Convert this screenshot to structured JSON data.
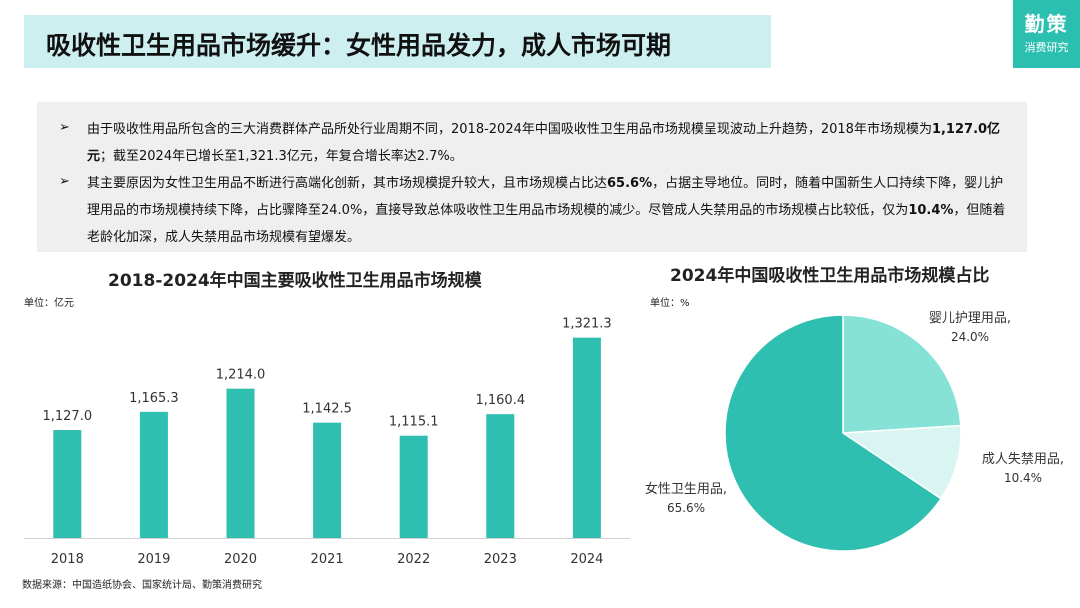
{
  "header": {
    "title": "吸收性卫生用品市场缓升：女性用品发力，成人市场可期",
    "brand_main": "勤策",
    "brand_sub": "消费研究"
  },
  "summary": {
    "bullet_icon": "arrow-bullet-icon",
    "b1": {
      "part1": "由于吸收性用品所包含的三大消费群体产品所处行业周期不同，2018-2024年中国吸收性卫生用品市场规模呈现波动上升趋势，2018年市场规模为",
      "bold": "1,127.0亿元",
      "part2": "；截至2024年已增长至1,321.3亿元，年复合增长率达2.7%。"
    },
    "b2": {
      "part1": "其主要原因为女性卫生用品不断进行高端化创新，其市场规模提升较大，且市场规模占比达",
      "bold1": "65.6%",
      "part2": "，占据主导地位。同时，随着中国新生人口持续下降，婴儿护理用品的市场规模持续下降，占比骤降至24.0%，直接导致总体吸收性卫生用品市场规模的减少。尽管成人失禁用品的市场规模占比较低，仅为",
      "bold2": "10.4%",
      "part3": "，但随着老龄化加深，成人失禁用品市场规模有望爆发。"
    }
  },
  "bar_chart": {
    "title": "2018-2024年中国主要吸收性卫生用品市场规模",
    "unit": "单位：亿元"
  },
  "pie_chart": {
    "title": "2024年中国吸收性卫生用品市场规模占比",
    "unit": "单位：%"
  },
  "source": "数据来源：中国造纸协会、国家统计局、勤策消费研究",
  "colors": {
    "bar": "#2ebfb1",
    "pie_women": "#2ebfb1",
    "pie_baby": "#86e2d7",
    "pie_adult": "#d8f5f1"
  },
  "chart_data": [
    {
      "type": "bar",
      "title": "2018-2024年中国主要吸收性卫生用品市场规模",
      "ylabel": "单位：亿元",
      "categories": [
        "2018",
        "2019",
        "2020",
        "2021",
        "2022",
        "2023",
        "2024"
      ],
      "values": [
        1127.0,
        1165.3,
        1214.0,
        1142.5,
        1115.1,
        1160.4,
        1321.3
      ],
      "labels": [
        "1,127.0",
        "1,165.3",
        "1,214.0",
        "1,142.5",
        "1,115.1",
        "1,160.4",
        "1,321.3"
      ],
      "ylim": [
        900,
        1350
      ],
      "grid": false
    },
    {
      "type": "pie",
      "title": "2024年中国吸收性卫生用品市场规模占比",
      "ylabel": "单位：%",
      "slices": [
        {
          "name": "婴儿护理用品,",
          "value": 24.0,
          "label": "24.0%"
        },
        {
          "name": "成人失禁用品,",
          "value": 10.4,
          "label": "10.4%"
        },
        {
          "name": "女性卫生用品,",
          "value": 65.6,
          "label": "65.6%"
        }
      ]
    }
  ]
}
